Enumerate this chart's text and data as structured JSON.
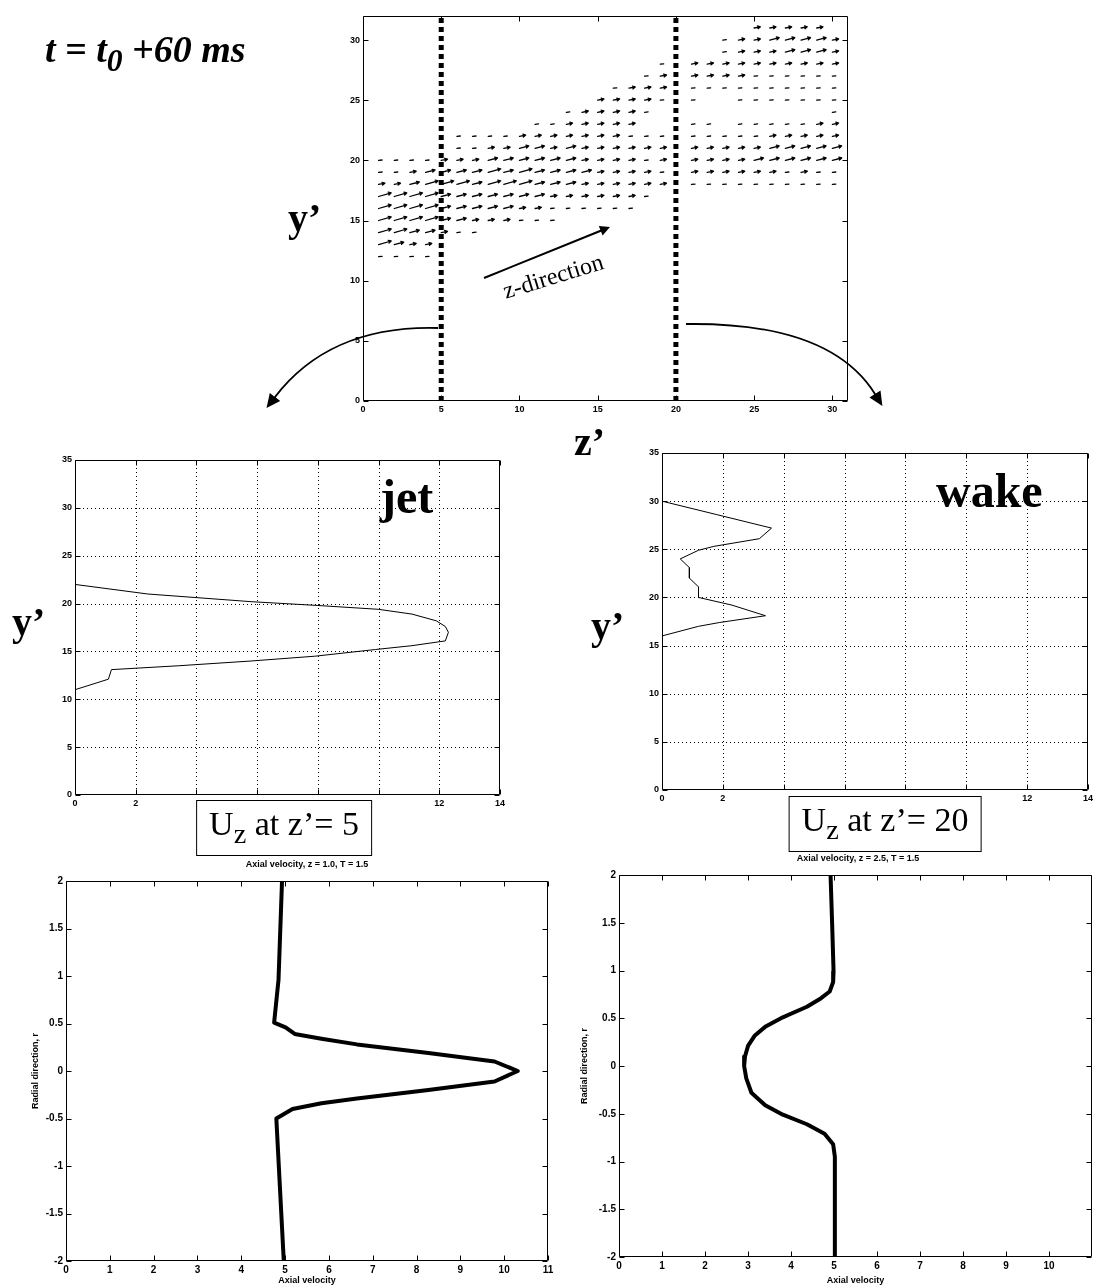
{
  "chart_data": [
    {
      "type": "line",
      "title": "t = t$_{0}$ +60 ms",
      "xlabel": "z’",
      "ylabel": "y’",
      "xlim": [
        0,
        31
      ],
      "ylim": [
        0,
        32
      ],
      "xticks": [
        0,
        5,
        10,
        15,
        20,
        25,
        30
      ],
      "yticks": [
        0,
        5,
        10,
        15,
        20,
        25,
        30
      ],
      "ref_lines": [
        {
          "axis": "x",
          "value": 5,
          "color": "#000000",
          "line_style": "dotted"
        },
        {
          "axis": "x",
          "value": 20,
          "color": "#000000",
          "line_style": "dotted"
        }
      ],
      "annotations": [
        "z-direction"
      ]
    },
    {
      "type": "line",
      "xlabel": "U$_{z}$ at z’= 5",
      "ylabel": "y’",
      "annotations": [
        "jet"
      ],
      "x": [
        0,
        2.4,
        5.8,
        8,
        10,
        11.1,
        11.9,
        12.2,
        12.3,
        12.2,
        11.1,
        9.9,
        7.9,
        5.8,
        3.4,
        1.2,
        1.1,
        0
      ],
      "values": [
        22,
        21,
        20.2,
        19.8,
        19.4,
        18.9,
        18.2,
        17.6,
        17,
        16.1,
        15.6,
        15.2,
        14.5,
        14,
        13.5,
        13.1,
        12.1,
        11
      ],
      "color": "#000000",
      "xlim": [
        0,
        14
      ],
      "ylim": [
        0,
        35
      ],
      "xticks": [
        0,
        2,
        {
          "value": 4,
          "label": null
        },
        {
          "value": 6,
          "label": null
        },
        {
          "value": 8,
          "label": null
        },
        {
          "value": 10,
          "label": null
        },
        12,
        14
      ],
      "yticks": [
        0,
        5,
        10,
        15,
        20,
        25,
        30,
        35
      ],
      "grid": true
    },
    {
      "type": "line",
      "xlabel": "U$_{z}$ at z’= 20",
      "ylabel": "y’",
      "annotations": [
        "wake"
      ],
      "x": [
        0,
        1.8,
        3.6,
        3.2,
        1.7,
        1.2,
        0.6,
        0.9,
        0.9,
        1.2,
        1.2,
        2.3,
        3.4,
        1.9,
        1.2,
        0
      ],
      "values": [
        30,
        28.6,
        27.2,
        26.1,
        25.3,
        24.9,
        24,
        23.1,
        22,
        21.1,
        20,
        19.2,
        18.1,
        17.4,
        17,
        16
      ],
      "color": "#000000",
      "xlim": [
        0,
        14
      ],
      "ylim": [
        0,
        35
      ],
      "xticks": [
        0,
        2,
        {
          "value": 4,
          "label": null
        },
        {
          "value": 6,
          "label": null
        },
        {
          "value": 8,
          "label": null
        },
        {
          "value": 10,
          "label": null
        },
        12,
        14
      ],
      "yticks": [
        0,
        5,
        10,
        15,
        20,
        25,
        30,
        35
      ],
      "grid": true
    },
    {
      "type": "line",
      "title": "Axial velocity, z = 1.0, T = 1.5",
      "xlabel": "Axial velocity",
      "ylabel": "Radial direction, r",
      "x": [
        4.93,
        4.85,
        4.75,
        5.01,
        5.22,
        5.83,
        6.64,
        8.27,
        9.78,
        10.31,
        9.78,
        8.27,
        6.64,
        5.83,
        5.17,
        4.8,
        4.97
      ],
      "values": [
        2,
        0.96,
        0.51,
        0.46,
        0.39,
        0.34,
        0.28,
        0.19,
        0.1,
        0,
        -0.11,
        -0.2,
        -0.29,
        -0.34,
        -0.4,
        -0.5,
        -2
      ],
      "color": "#000000",
      "xlim": [
        0,
        11
      ],
      "ylim": [
        -2,
        2
      ],
      "xticks": [
        0,
        1,
        2,
        3,
        4,
        5,
        6,
        7,
        8,
        9,
        10,
        11
      ],
      "yticks": [
        -2,
        -1.5,
        -1,
        -0.5,
        0,
        0.5,
        1,
        1.5,
        2
      ]
    },
    {
      "type": "line",
      "title": "Axial velocity, z = 2.5, T = 1.5",
      "xlabel": "Axial velocity",
      "ylabel": "Radial direction, r",
      "x": [
        4.92,
        4.96,
        4.99,
        4.98,
        4.9,
        4.7,
        4.37,
        3.81,
        3.4,
        3.16,
        3,
        2.93,
        2.91,
        2.96,
        3.08,
        3.4,
        3.81,
        4.37,
        4.78,
        4.98,
        5.02,
        5.02
      ],
      "values": [
        2,
        1.44,
        0.99,
        0.88,
        0.78,
        0.71,
        0.62,
        0.51,
        0.41,
        0.32,
        0.21,
        0.1,
        0,
        -0.13,
        -0.28,
        -0.41,
        -0.51,
        -0.61,
        -0.71,
        -0.82,
        -0.95,
        -2
      ],
      "color": "#000000",
      "xlim": [
        0,
        11
      ],
      "ylim": [
        -2,
        2
      ],
      "xticks": [
        0,
        1,
        2,
        3,
        4,
        5,
        6,
        7,
        8,
        9,
        10
      ],
      "yticks": [
        -2,
        -1.5,
        -1,
        -0.5,
        0,
        0.5,
        1,
        1.5,
        2
      ]
    }
  ]
}
